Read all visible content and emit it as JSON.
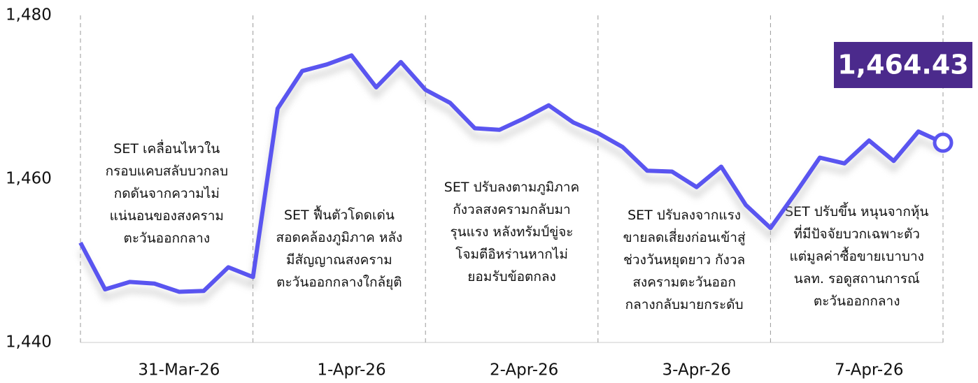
{
  "chart_data": {
    "type": "line",
    "categories": [
      null,
      null,
      null,
      null,
      "31-Mar-26",
      null,
      null,
      null,
      null,
      null,
      null,
      "1-Apr-26",
      null,
      null,
      null,
      null,
      null,
      null,
      "2-Apr-26",
      null,
      null,
      null,
      null,
      null,
      null,
      "3-Apr-26",
      null,
      null,
      null,
      null,
      null,
      null,
      "7-Apr-26",
      null,
      null,
      null
    ],
    "series": [
      {
        "name": "SET",
        "color": "#5a55f0",
        "values": [
          1452.2,
          1446.5,
          1447.4,
          1447.2,
          1446.2,
          1446.3,
          1449.2,
          1448.0,
          1468.6,
          1473.2,
          1474.0,
          1475.1,
          1471.2,
          1474.3,
          1470.9,
          1469.3,
          1466.2,
          1466.0,
          1467.4,
          1469.0,
          1466.9,
          1465.6,
          1463.9,
          1461.0,
          1460.9,
          1459.0,
          1461.5,
          1456.8,
          1454.0,
          1458.2,
          1462.6,
          1461.9,
          1464.7,
          1462.2,
          1465.8,
          1464.43
        ],
        "value_labels": [
          null,
          null,
          null,
          null,
          null,
          null,
          null,
          null,
          null,
          null,
          null,
          null,
          null,
          null,
          null,
          null,
          null,
          null,
          null,
          null,
          null,
          null,
          null,
          null,
          null,
          null,
          null,
          null,
          null,
          null,
          null,
          null,
          null,
          null,
          null,
          "1,464.43"
        ]
      }
    ],
    "ylim": [
      1440,
      1480
    ],
    "yticks": [
      {
        "value": 1440,
        "label": "1,440"
      },
      {
        "value": 1460,
        "label": "1,460"
      },
      {
        "value": 1480,
        "label": "1,480"
      }
    ],
    "annotations": [
      [
        "SET เคลื่อนไหวใน",
        "กรอบแคบสลับบวกลบ",
        "กดดันจากความไม่",
        "แน่นอนของสงคราม",
        "ตะวันออกกลาง"
      ],
      [
        "SET ฟื้นตัวโดดเด่น",
        "สอดคล้องภูมิภาค หลัง",
        "มีสัญญาณสงคราม",
        "ตะวันออกกลางใกล้ยุติ"
      ],
      [
        "SET ปรับลงตามภูมิภาค",
        "กังวลสงครามกลับมา",
        "รุนแรง หลังทรัมป์ขู่จะ",
        "โจมตีอิหร่านหากไม่",
        "ยอมรับข้อตกลง"
      ],
      [
        "SET ปรับลงจากแรง",
        "ขายลดเสี่ยงก่อนเข้าสู่",
        "ช่วงวันหยุดยาว กังวล",
        "สงครามตะวันออก",
        "กลางกลับมายกระดับ"
      ],
      [
        "SET ปรับขึ้น หนุนจากหุ้น",
        "ที่มีปัจจัยบวกเฉพาะตัว",
        "แต่มูลค่าซื้อขายเบาบาง",
        "นลท. รอดูสถานการณ์",
        "ตะวันออกกลาง"
      ]
    ]
  }
}
